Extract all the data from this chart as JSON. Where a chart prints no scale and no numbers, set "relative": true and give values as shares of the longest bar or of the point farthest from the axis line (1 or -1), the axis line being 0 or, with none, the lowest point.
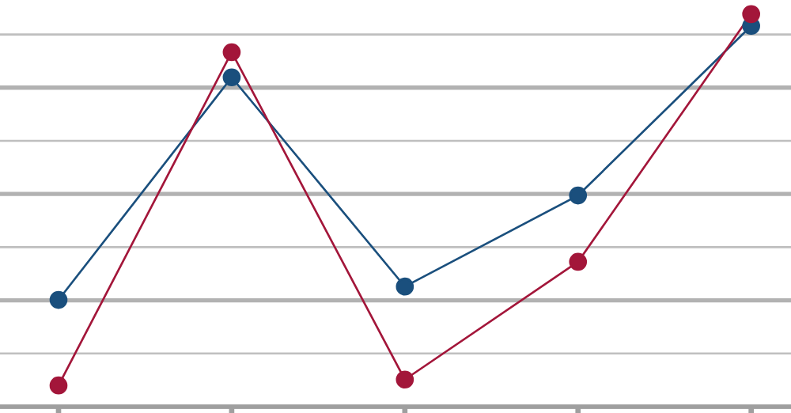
{
  "chart_data": {
    "type": "line",
    "relative": true,
    "grid": "y",
    "marker": "circle",
    "categories": [
      null,
      null,
      null,
      null,
      null
    ],
    "series": [
      {
        "color": "#1a4f7d",
        "values": [
          0.272,
          0.839,
          0.306,
          0.538,
          0.97
        ]
      },
      {
        "color": "#a3163a",
        "values": [
          0.054,
          0.903,
          0.069,
          0.369,
          1.0
        ]
      }
    ]
  }
}
